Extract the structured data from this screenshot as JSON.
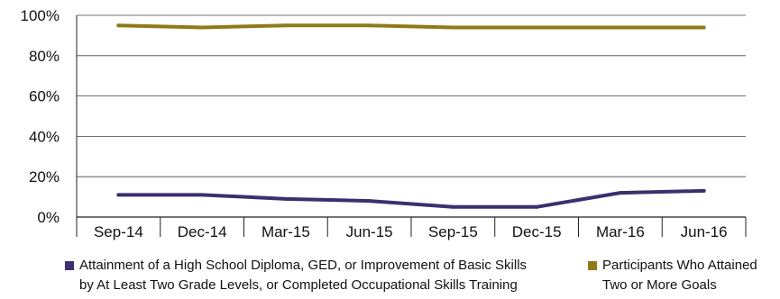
{
  "chart_data": {
    "type": "line",
    "title": "",
    "xlabel": "",
    "ylabel": "",
    "ylim": [
      0,
      100
    ],
    "y_ticks": [
      "0%",
      "20%",
      "40%",
      "60%",
      "80%",
      "100%"
    ],
    "categories": [
      "Sep-14",
      "Dec-14",
      "Mar-15",
      "Jun-15",
      "Sep-15",
      "Dec-15",
      "Mar-16",
      "Jun-16"
    ],
    "grid": "horizontal",
    "legend_position": "bottom",
    "series": [
      {
        "name": "Attainment of a High School Diploma, GED, or Improvement of Basic Skills by At Least Two Grade Levels, or Completed Occupational Skills Training",
        "legend_lines": [
          "Attainment of a High School Diploma, GED, or Improvement of Basic Skills",
          "by At Least Two Grade Levels, or Completed Occupational Skills Training"
        ],
        "color": "#3d2f6e",
        "values": [
          11,
          11,
          9,
          8,
          5,
          5,
          12,
          13
        ]
      },
      {
        "name": "Participants Who Attained Two or More Goals",
        "legend_lines": [
          "Participants Who Attained",
          "Two or More Goals"
        ],
        "color": "#8f7a16",
        "values": [
          95,
          94,
          95,
          95,
          94,
          94,
          94,
          94
        ]
      }
    ]
  }
}
